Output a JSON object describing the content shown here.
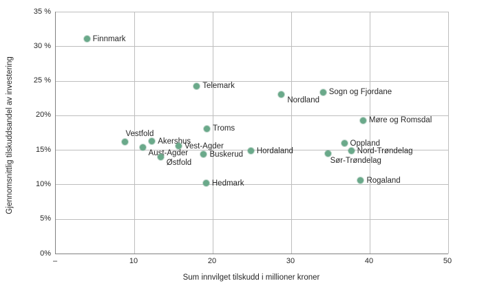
{
  "chart_data": {
    "type": "scatter",
    "title": "",
    "xlabel": "Sum innvilget tilskudd i millioner kroner",
    "ylabel": "Gjennomsnittlig tilskuddsandel av investering",
    "xlim": [
      0,
      50
    ],
    "ylim": [
      0,
      35
    ],
    "grid": true,
    "legend_position": "none",
    "x_ticks": [
      {
        "value": 0,
        "label": "–"
      },
      {
        "value": 10,
        "label": "10"
      },
      {
        "value": 20,
        "label": "20"
      },
      {
        "value": 30,
        "label": "30"
      },
      {
        "value": 40,
        "label": "40"
      },
      {
        "value": 50,
        "label": "50"
      }
    ],
    "y_ticks": [
      {
        "value": 35,
        "label": "35 %"
      },
      {
        "value": 30,
        "label": "30 %"
      },
      {
        "value": 25,
        "label": "25 %"
      },
      {
        "value": 20,
        "label": "20%"
      },
      {
        "value": 15,
        "label": "15%"
      },
      {
        "value": 10,
        "label": "10%"
      },
      {
        "value": 5,
        "label": "5%"
      },
      {
        "value": 0,
        "label": "0%"
      }
    ],
    "colors": {
      "point": "#6aa98a",
      "gridline": "#bdbdbd",
      "axis_line": "#7f7f7f",
      "text": "#262626"
    },
    "points": [
      {
        "label": "Finnmark",
        "x": 4.0,
        "y": 31.0,
        "label_pos": "right"
      },
      {
        "label": "Telemark",
        "x": 18.0,
        "y": 24.2,
        "label_pos": "right"
      },
      {
        "label": "Sogn og Fjordane",
        "x": 34.1,
        "y": 23.3,
        "label_pos": "right"
      },
      {
        "label": "Nordland",
        "x": 28.8,
        "y": 23.0,
        "label_pos": "below-right"
      },
      {
        "label": "Møre og Romsdal",
        "x": 39.2,
        "y": 19.2,
        "label_pos": "right"
      },
      {
        "label": "Troms",
        "x": 19.3,
        "y": 18.0,
        "label_pos": "right"
      },
      {
        "label": "Akershus",
        "x": 12.3,
        "y": 16.2,
        "label_pos": "right"
      },
      {
        "label": "Vestfold",
        "x": 8.9,
        "y": 16.1,
        "label_pos": "above-right"
      },
      {
        "label": "Oppland",
        "x": 36.8,
        "y": 15.9,
        "label_pos": "right"
      },
      {
        "label": "Vest-Agder",
        "x": 15.7,
        "y": 15.5,
        "label_pos": "right"
      },
      {
        "label": "Aust-Agder",
        "x": 11.1,
        "y": 15.3,
        "label_pos": "below-right"
      },
      {
        "label": "Hordaland",
        "x": 24.9,
        "y": 14.8,
        "label_pos": "right"
      },
      {
        "label": "Nord-Trøndelag",
        "x": 37.7,
        "y": 14.8,
        "label_pos": "right"
      },
      {
        "label": "Sør-Trøndelag",
        "x": 34.7,
        "y": 14.4,
        "label_pos": "below"
      },
      {
        "label": "Buskerud",
        "x": 18.9,
        "y": 14.3,
        "label_pos": "right"
      },
      {
        "label": "Østfold",
        "x": 13.4,
        "y": 13.9,
        "label_pos": "below-right"
      },
      {
        "label": "Rogaland",
        "x": 38.9,
        "y": 10.5,
        "label_pos": "right"
      },
      {
        "label": "Hedmark",
        "x": 19.2,
        "y": 10.1,
        "label_pos": "right"
      }
    ]
  }
}
